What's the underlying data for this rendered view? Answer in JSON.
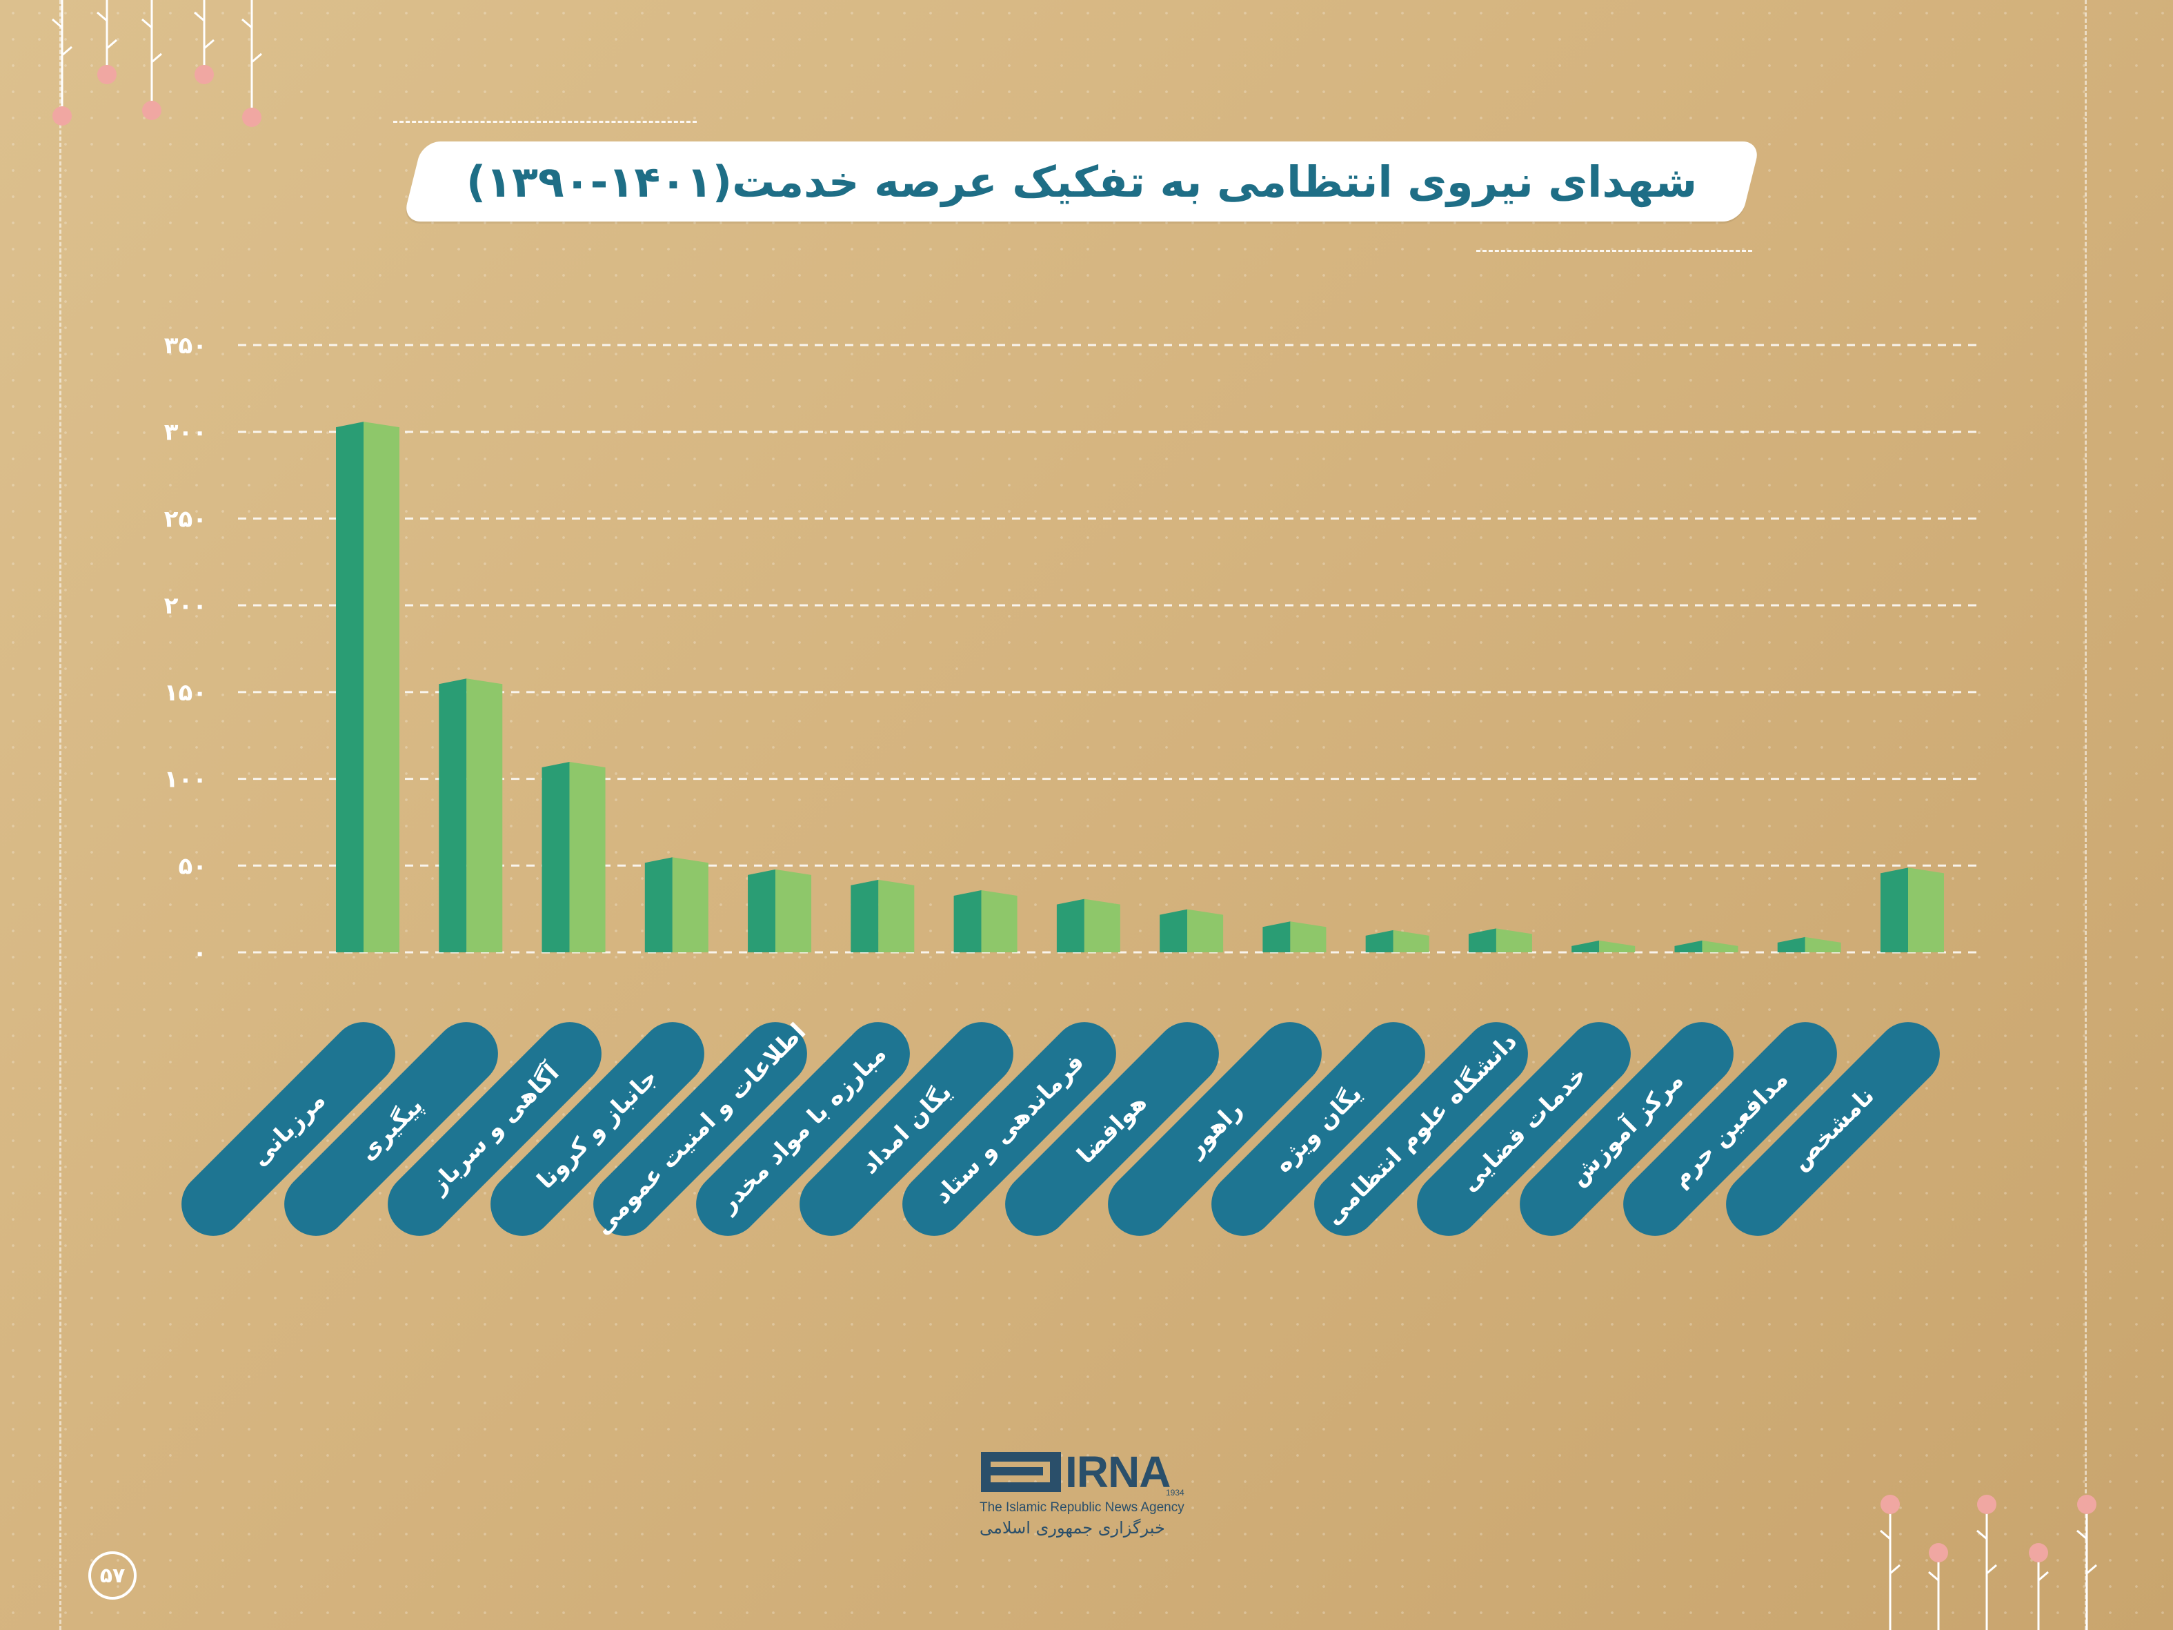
{
  "title": "شهدای نیروی انتظامی به تفکیک عرصه خدمت(۱۴۰۱-۱۳۹۰)",
  "page_number": "۵۷",
  "logo": {
    "wordmark": "IRNA",
    "year": "1934",
    "english": "The Islamic Republic News Agency",
    "persian": "خبرگزاری جمهوری اسلامی"
  },
  "colors": {
    "background": "#d6b682",
    "bar_dark": "#2a9d74",
    "bar_light": "#8ec76a",
    "pill": "#1e7592",
    "title_text": "#1e6e86"
  },
  "chart_data": {
    "type": "bar",
    "categories": [
      "مرزبانی",
      "پیگیری",
      "آگاهی و سرباز",
      "جانباز و کرونا",
      "اطلاعات و امنیت عمومی",
      "مبارزه با مواد مخدر",
      "یگان امداد",
      "فرماندهی و ستاد",
      "هوافضا",
      "راهور",
      "یگان ویژه",
      "دانشگاه علوم انتظامی",
      "خدمات قضایی",
      "مرکز آموزش",
      "مدافعین حرم",
      "نامشخص"
    ],
    "values": [
      305,
      157,
      109,
      54,
      47,
      41,
      35,
      30,
      24,
      17,
      12,
      13,
      6,
      6,
      8,
      48
    ],
    "yticks": [
      "۰",
      "۵۰",
      "۱۰۰",
      "۱۵۰",
      "۲۰۰",
      "۲۵۰",
      "۳۰۰",
      "۳۵۰"
    ],
    "ylim": [
      0,
      350
    ],
    "grid": true,
    "xlabel": "",
    "ylabel": ""
  }
}
